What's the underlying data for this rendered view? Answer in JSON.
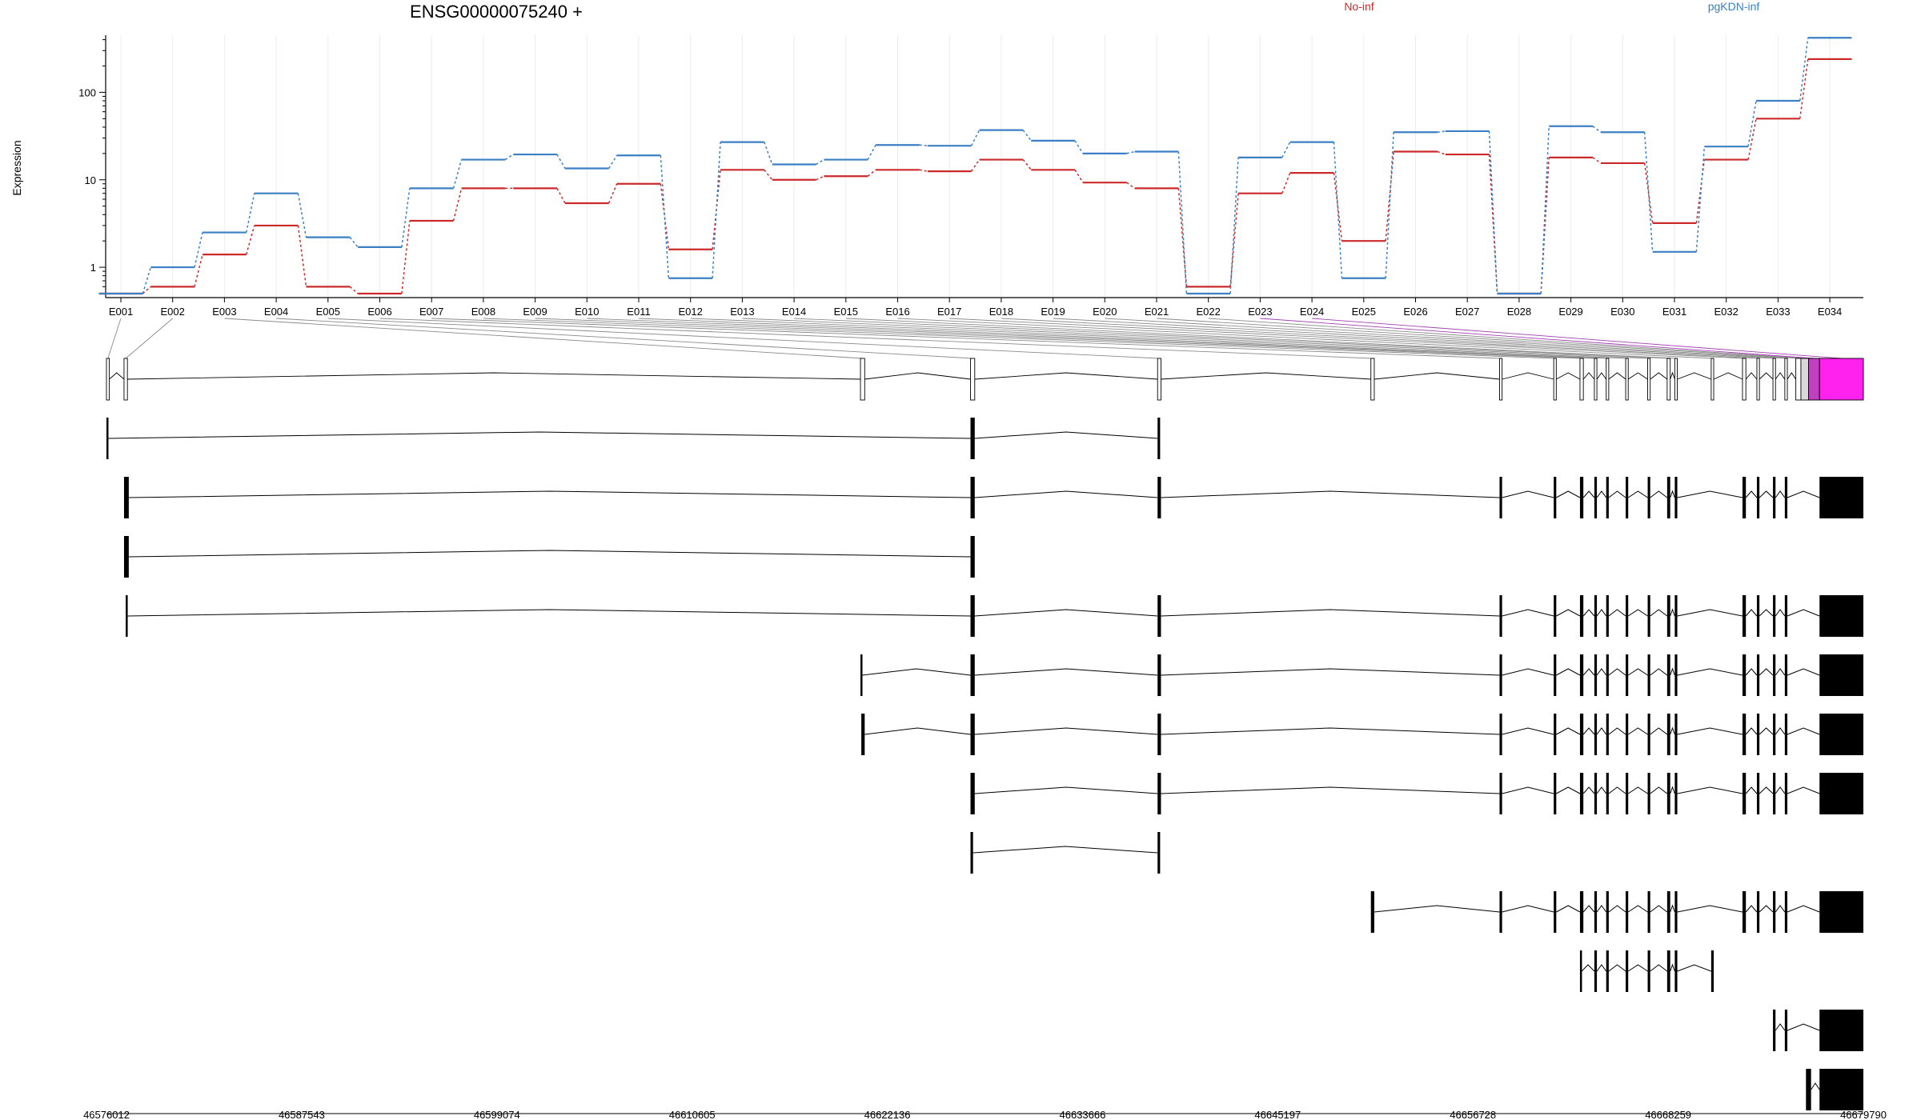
{
  "title": "ENSG00000075240 +",
  "legend": {
    "no_inf": {
      "label": "No-inf",
      "color": "#cc2a2a"
    },
    "pgkdn_inf": {
      "label": "pgKDN-inf",
      "color": "#3b7fc4"
    }
  },
  "colors": {
    "highlight_exon": "#ff22ee",
    "highlight_exon_dark": "#c040c0",
    "highlight_link": "#a040b0",
    "exon_fill": "#ffffff",
    "transcript_fill": "#000000"
  },
  "chart_data": {
    "type": "line",
    "title": "ENSG00000075240 +",
    "ylabel": "Expression",
    "yscale": "log",
    "ylim": [
      0.45,
      450
    ],
    "yticks": [
      1,
      10,
      100
    ],
    "grid": true,
    "legend_position": "top",
    "categories": [
      "E001",
      "E002",
      "E003",
      "E004",
      "E005",
      "E006",
      "E007",
      "E008",
      "E009",
      "E010",
      "E011",
      "E012",
      "E013",
      "E014",
      "E015",
      "E016",
      "E017",
      "E018",
      "E019",
      "E020",
      "E021",
      "E022",
      "E023",
      "E024",
      "E025",
      "E026",
      "E027",
      "E028",
      "E029",
      "E030",
      "E031",
      "E032",
      "E033",
      "E034"
    ],
    "series": [
      {
        "name": "No-inf",
        "color": "#cc2a2a",
        "values": [
          0.5,
          0.6,
          1.4,
          3.0,
          0.6,
          0.5,
          3.4,
          8.0,
          8.0,
          5.4,
          9.0,
          1.6,
          13,
          10,
          11,
          13,
          12.5,
          17,
          13,
          9.3,
          8.0,
          0.6,
          7.0,
          12,
          2.0,
          21,
          19.5,
          0.5,
          18,
          15.5,
          3.2,
          17,
          50,
          240
        ]
      },
      {
        "name": "pgKDN-inf",
        "color": "#3b7fc4",
        "values": [
          0.5,
          1.0,
          2.5,
          7.0,
          2.2,
          1.7,
          8.0,
          17,
          19.5,
          13.5,
          19,
          0.75,
          27,
          15,
          17,
          25,
          24.5,
          37,
          28,
          20,
          21,
          0.5,
          18,
          27,
          0.75,
          35,
          36,
          0.5,
          41,
          35,
          1.5,
          24,
          80,
          420
        ]
      }
    ],
    "genomic_ticks": [
      "46576012",
      "46587543",
      "46599074",
      "46610605",
      "46622136",
      "46633666",
      "46645197",
      "46656728",
      "46668259",
      "46679790"
    ]
  },
  "gene_model": {
    "start": 46576012,
    "end": 46679790,
    "exons": [
      [
        46576012,
        46576180
      ],
      [
        46577050,
        46577250
      ],
      [
        46620550,
        46620800
      ],
      [
        46627050,
        46627300
      ],
      [
        46638100,
        46638300
      ],
      [
        46650700,
        46650900
      ],
      [
        46658300,
        46658450
      ],
      [
        46661500,
        46661650
      ],
      [
        46663050,
        46663250
      ],
      [
        46663900,
        46664050
      ],
      [
        46664600,
        46664750
      ],
      [
        46665750,
        46665900
      ],
      [
        46667050,
        46667200
      ],
      [
        46668200,
        46668380
      ],
      [
        46668650,
        46668800
      ],
      [
        46670800,
        46670950
      ],
      [
        46672650,
        46672850
      ],
      [
        46673500,
        46673650
      ],
      [
        46674450,
        46674600
      ],
      [
        46675150,
        46675300
      ],
      [
        46675800,
        46676100
      ],
      [
        46676100,
        46676550
      ],
      [
        46676550,
        46677200
      ],
      [
        46677200,
        46679790
      ]
    ],
    "highlighted": [
      22,
      23
    ],
    "transcripts": [
      [
        [
          46576012,
          46576100
        ],
        [
          46627050,
          46627300
        ],
        [
          46638100,
          46638250
        ]
      ],
      [
        [
          46577050,
          46577330
        ],
        [
          46627050,
          46627300
        ],
        [
          46638100,
          46638300
        ],
        [
          46658300,
          46658450
        ],
        [
          46661500,
          46661650
        ],
        [
          46663050,
          46663250
        ],
        [
          46663900,
          46664050
        ],
        [
          46664600,
          46664750
        ],
        [
          46665750,
          46665900
        ],
        [
          46667050,
          46667200
        ],
        [
          46668200,
          46668380
        ],
        [
          46668650,
          46668800
        ],
        [
          46672650,
          46672850
        ],
        [
          46673500,
          46673650
        ],
        [
          46674450,
          46674600
        ],
        [
          46675150,
          46675300
        ],
        [
          46677200,
          46679790
        ]
      ],
      [
        [
          46577050,
          46577330
        ],
        [
          46627050,
          46627300
        ]
      ],
      [
        [
          46577150,
          46577250
        ],
        [
          46627050,
          46627300
        ],
        [
          46638100,
          46638300
        ],
        [
          46658300,
          46658450
        ],
        [
          46661500,
          46661650
        ],
        [
          46663050,
          46663250
        ],
        [
          46663900,
          46664050
        ],
        [
          46664600,
          46664750
        ],
        [
          46665750,
          46665900
        ],
        [
          46667050,
          46667200
        ],
        [
          46668200,
          46668380
        ],
        [
          46668650,
          46668800
        ],
        [
          46672650,
          46672850
        ],
        [
          46673500,
          46673650
        ],
        [
          46674450,
          46674600
        ],
        [
          46675150,
          46675300
        ],
        [
          46677200,
          46679790
        ]
      ],
      [
        [
          46620550,
          46620650
        ],
        [
          46627050,
          46627300
        ],
        [
          46638100,
          46638300
        ],
        [
          46658300,
          46658450
        ],
        [
          46661500,
          46661650
        ],
        [
          46663050,
          46663250
        ],
        [
          46663900,
          46664050
        ],
        [
          46664600,
          46664750
        ],
        [
          46665750,
          46665900
        ],
        [
          46667050,
          46667200
        ],
        [
          46668200,
          46668380
        ],
        [
          46668650,
          46668800
        ],
        [
          46672650,
          46672850
        ],
        [
          46673500,
          46673650
        ],
        [
          46674450,
          46674600
        ],
        [
          46675150,
          46675300
        ],
        [
          46677200,
          46679790
        ]
      ],
      [
        [
          46620600,
          46620800
        ],
        [
          46627050,
          46627300
        ],
        [
          46638100,
          46638300
        ],
        [
          46658300,
          46658450
        ],
        [
          46661500,
          46661650
        ],
        [
          46663050,
          46663250
        ],
        [
          46663900,
          46664050
        ],
        [
          46664600,
          46664750
        ],
        [
          46665750,
          46665900
        ],
        [
          46667050,
          46667200
        ],
        [
          46668200,
          46668380
        ],
        [
          46668650,
          46668800
        ],
        [
          46672650,
          46672850
        ],
        [
          46673500,
          46673650
        ],
        [
          46674450,
          46674600
        ],
        [
          46675150,
          46675300
        ],
        [
          46677200,
          46679790
        ]
      ],
      [
        [
          46627050,
          46627300
        ],
        [
          46638100,
          46638300
        ],
        [
          46658300,
          46658450
        ],
        [
          46661500,
          46661650
        ],
        [
          46663050,
          46663250
        ],
        [
          46663900,
          46664050
        ],
        [
          46664600,
          46664750
        ],
        [
          46665750,
          46665900
        ],
        [
          46667050,
          46667200
        ],
        [
          46668200,
          46668380
        ],
        [
          46668650,
          46668800
        ],
        [
          46672650,
          46672850
        ],
        [
          46673500,
          46673650
        ],
        [
          46674450,
          46674600
        ],
        [
          46675150,
          46675300
        ],
        [
          46677200,
          46679790
        ]
      ],
      [
        [
          46627050,
          46627200
        ],
        [
          46638100,
          46638250
        ]
      ],
      [
        [
          46650700,
          46650900
        ],
        [
          46658300,
          46658450
        ],
        [
          46661500,
          46661650
        ],
        [
          46663050,
          46663250
        ],
        [
          46663900,
          46664050
        ],
        [
          46664600,
          46664750
        ],
        [
          46665750,
          46665900
        ],
        [
          46667050,
          46667200
        ],
        [
          46668200,
          46668380
        ],
        [
          46668650,
          46668800
        ],
        [
          46672650,
          46672850
        ],
        [
          46673500,
          46673650
        ],
        [
          46674450,
          46674600
        ],
        [
          46675150,
          46675300
        ],
        [
          46677200,
          46679790
        ]
      ],
      [
        [
          46663050,
          46663150
        ],
        [
          46663900,
          46664050
        ],
        [
          46664600,
          46664750
        ],
        [
          46665750,
          46665900
        ],
        [
          46667050,
          46667200
        ],
        [
          46668200,
          46668380
        ],
        [
          46668650,
          46668800
        ],
        [
          46670800,
          46670950
        ]
      ],
      [
        [
          46674450,
          46674600
        ],
        [
          46675150,
          46675300
        ],
        [
          46677200,
          46679790
        ]
      ],
      [
        [
          46676400,
          46676700
        ],
        [
          46677200,
          46679790
        ]
      ]
    ]
  }
}
